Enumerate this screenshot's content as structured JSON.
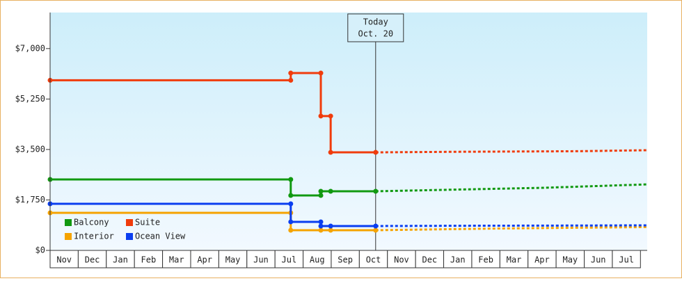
{
  "chart_data": {
    "type": "step-line",
    "categories": [
      "Nov",
      "Dec",
      "Jan",
      "Feb",
      "Mar",
      "Apr",
      "May",
      "Jun",
      "Jul",
      "Aug",
      "Sep",
      "Oct",
      "Nov",
      "Dec",
      "Jan",
      "Feb",
      "Mar",
      "Apr",
      "May",
      "Jun",
      "Jul"
    ],
    "xlim": [
      0,
      21.24
    ],
    "ylim": [
      0,
      8250
    ],
    "yticks": [
      {
        "value": 0,
        "label": "$0"
      },
      {
        "value": 1750,
        "label": "$1,750"
      },
      {
        "value": 3500,
        "label": "$3,500"
      },
      {
        "value": 5250,
        "label": "$5,250"
      },
      {
        "value": 7000,
        "label": "$7,000"
      }
    ],
    "today": {
      "label": "Today",
      "date": "Oct. 20",
      "x": 11.58
    },
    "series": [
      {
        "name": "Balcony",
        "color": "#119911",
        "x": [
          0,
          8.56,
          8.56,
          9.63,
          9.63,
          9.98,
          11.58
        ],
        "values": [
          2460,
          2460,
          1905,
          1905,
          2050,
          2050,
          2050
        ],
        "forecast": {
          "x": [
            11.58,
            14.5,
            17.5,
            19.4,
            21.24
          ],
          "values": [
            2050,
            2110,
            2170,
            2230,
            2290
          ]
        }
      },
      {
        "name": "Suite",
        "color": "#f03c0c",
        "x": [
          0,
          8.56,
          8.56,
          9.63,
          9.63,
          9.98,
          9.98,
          11.58
        ],
        "values": [
          5900,
          5900,
          6150,
          6150,
          4660,
          4660,
          3400,
          3400
        ],
        "forecast": {
          "x": [
            11.58,
            14.4,
            18.8,
            21.24
          ],
          "values": [
            3400,
            3420,
            3440,
            3475
          ]
        }
      },
      {
        "name": "Interior",
        "color": "#f5a300",
        "x": [
          0,
          8.56,
          8.56,
          9.63,
          9.98,
          11.58
        ],
        "values": [
          1303,
          1303,
          700,
          700,
          700,
          700
        ],
        "forecast": {
          "x": [
            11.58,
            16,
            21.24
          ],
          "values": [
            700,
            760,
            810
          ]
        }
      },
      {
        "name": "Ocean View",
        "color": "#0a3ef0",
        "x": [
          0,
          8.56,
          8.56,
          9.63,
          9.63,
          9.98,
          11.58
        ],
        "values": [
          1617,
          1617,
          990,
          990,
          845,
          845,
          845
        ],
        "forecast": {
          "x": [
            11.58,
            15,
            18.8,
            21.24
          ],
          "values": [
            845,
            855,
            862,
            870
          ]
        }
      }
    ]
  }
}
